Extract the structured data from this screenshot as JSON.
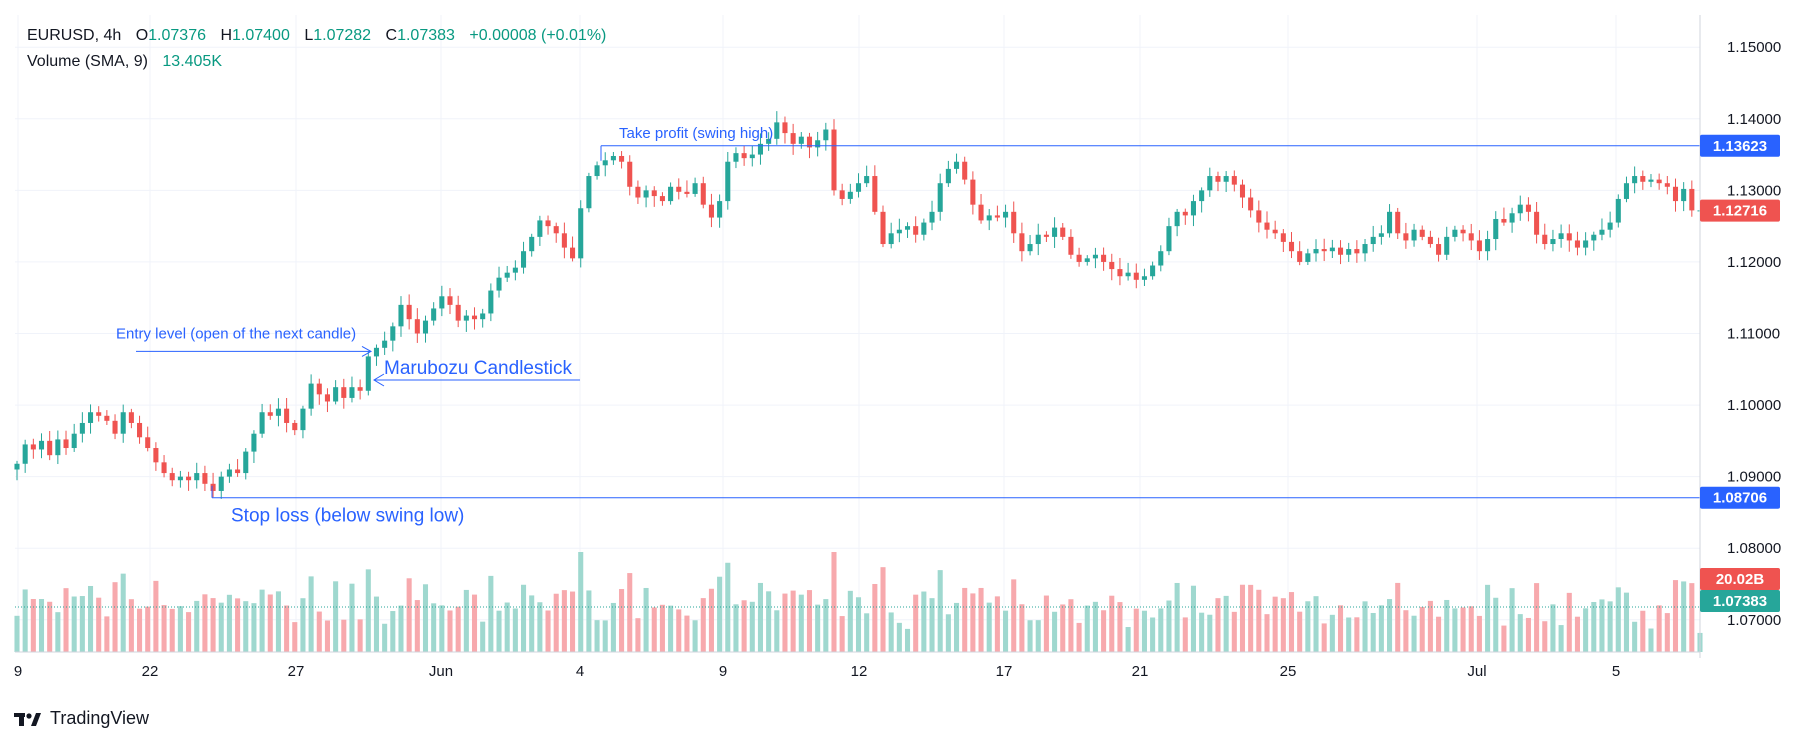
{
  "legend": {
    "symbol": "EURUSD",
    "interval": "4h",
    "o_label": "O",
    "o_value": "1.07376",
    "h_label": "H",
    "h_value": "1.07400",
    "l_label": "L",
    "l_value": "1.07282",
    "c_label": "C",
    "c_value": "1.07383",
    "change": "+0.00008 (+0.01%)",
    "volume_label": "Volume (SMA, 9)",
    "volume_value": "13.405K"
  },
  "brand": {
    "name": "TradingView",
    "icon": "tradingview-logo-icon"
  },
  "colors": {
    "up": "#26a69a",
    "down": "#ef5350",
    "vol_up": "#9fd8cf",
    "vol_down": "#f7a9ad",
    "annotation": "#2962ff",
    "text": "#131722",
    "grid": "#f0f3fa"
  },
  "chart_data": {
    "type": "candlestick",
    "symbol": "EURUSD",
    "interval": "4h",
    "y_axis": {
      "ticks": [
        "1.15000",
        "1.14000",
        "1.13000",
        "1.12000",
        "1.11000",
        "1.10000",
        "1.09000",
        "1.08000",
        "1.07000"
      ],
      "range": [
        1.0655,
        1.1545
      ]
    },
    "x_axis": {
      "ticks": [
        "9",
        "22",
        "27",
        "Jun",
        "4",
        "9",
        "12",
        "17",
        "21",
        "25",
        "Jul",
        "5"
      ]
    },
    "price_labels": [
      {
        "value": "1.13623",
        "kind": "take-profit-line"
      },
      {
        "value": "1.12716",
        "kind": "last-price"
      },
      {
        "value": "1.08706",
        "kind": "stop-loss-line"
      },
      {
        "value": "20.02B",
        "kind": "volume"
      },
      {
        "value": "1.07383",
        "kind": "current-close"
      }
    ],
    "annotations": {
      "take_profit": {
        "text": "Take profit (swing high)",
        "price": 1.13623
      },
      "stop_loss": {
        "text": "Stop loss (below swing low)",
        "price": 1.08706
      },
      "entry": {
        "text": "Entry level (open of the next candle)",
        "price": 1.1075
      },
      "marubozu": {
        "text": "Marubozu Candlestick"
      }
    },
    "closes": [
      1.0918,
      1.0945,
      1.0938,
      1.095,
      1.093,
      1.0952,
      1.094,
      1.096,
      1.0975,
      1.099,
      1.0985,
      1.0978,
      1.096,
      1.099,
      1.0975,
      1.0955,
      1.094,
      1.092,
      1.0905,
      1.0895,
      1.09,
      1.0895,
      1.0905,
      1.089,
      1.088,
      1.09,
      1.091,
      1.0905,
      1.0935,
      1.096,
      1.099,
      1.0985,
      1.0995,
      1.0975,
      1.0965,
      1.0995,
      1.103,
      1.1015,
      1.1005,
      1.1025,
      1.101,
      1.1025,
      1.102,
      1.1068,
      1.108,
      1.109,
      1.111,
      1.114,
      1.112,
      1.11,
      1.1118,
      1.1135,
      1.1152,
      1.114,
      1.1118,
      1.1125,
      1.112,
      1.1128,
      1.116,
      1.1178,
      1.1185,
      1.1192,
      1.1215,
      1.1235,
      1.1258,
      1.125,
      1.124,
      1.122,
      1.1205,
      1.1275,
      1.132,
      1.1335,
      1.1342,
      1.1348,
      1.134,
      1.1305,
      1.129,
      1.13,
      1.1292,
      1.1285,
      1.1305,
      1.1298,
      1.1295,
      1.131,
      1.128,
      1.1262,
      1.1285,
      1.134,
      1.1352,
      1.1345,
      1.135,
      1.1365,
      1.1372,
      1.1395,
      1.138,
      1.1365,
      1.1375,
      1.136,
      1.137,
      1.1385,
      1.13,
      1.1288,
      1.1298,
      1.131,
      1.132,
      1.127,
      1.1225,
      1.124,
      1.1245,
      1.125,
      1.1238,
      1.1255,
      1.127,
      1.131,
      1.133,
      1.134,
      1.1315,
      1.128,
      1.1258,
      1.1265,
      1.1262,
      1.127,
      1.124,
      1.1215,
      1.1225,
      1.1238,
      1.1235,
      1.1248,
      1.1235,
      1.121,
      1.12,
      1.1205,
      1.121,
      1.12,
      1.119,
      1.118,
      1.1185,
      1.1175,
      1.118,
      1.1195,
      1.1215,
      1.125,
      1.127,
      1.1265,
      1.1285,
      1.13,
      1.132,
      1.1312,
      1.132,
      1.1308,
      1.129,
      1.1272,
      1.1255,
      1.1245,
      1.124,
      1.1228,
      1.1215,
      1.12,
      1.1212,
      1.1218,
      1.1215,
      1.122,
      1.121,
      1.1218,
      1.1212,
      1.1225,
      1.1235,
      1.124,
      1.127,
      1.124,
      1.123,
      1.1245,
      1.1235,
      1.1225,
      1.121,
      1.1235,
      1.1245,
      1.124,
      1.123,
      1.1215,
      1.1232,
      1.126,
      1.1255,
      1.1268,
      1.128,
      1.127,
      1.1238,
      1.1225,
      1.1232,
      1.124,
      1.123,
      1.122,
      1.123,
      1.1238,
      1.1245,
      1.1255,
      1.1288,
      1.131,
      1.132,
      1.1312,
      1.1315,
      1.131,
      1.1305,
      1.1285,
      1.1302,
      1.1272,
      1.1272
    ]
  }
}
